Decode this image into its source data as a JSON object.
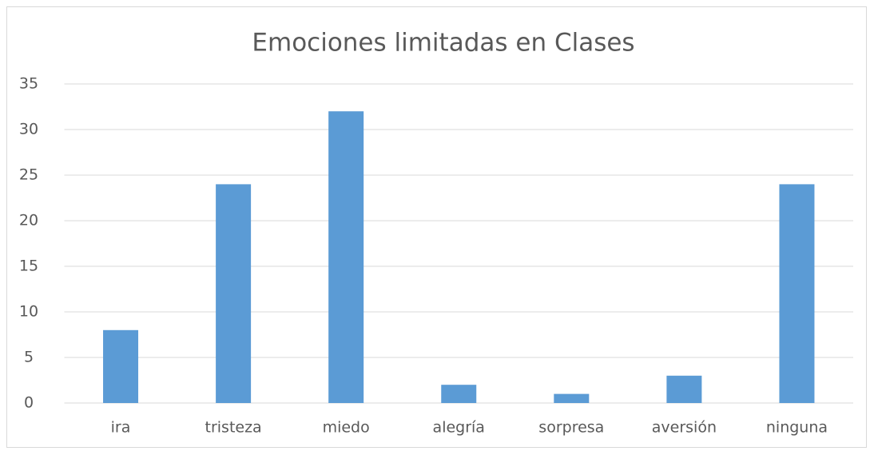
{
  "chart_data": {
    "type": "bar",
    "title": "Emociones limitadas en Clases",
    "categories": [
      "ira",
      "tristeza",
      "miedo",
      "alegría",
      "sorpresa",
      "aversión",
      "ninguna"
    ],
    "values": [
      8,
      24,
      32,
      2,
      1,
      3,
      24
    ],
    "color": "#5b9bd5",
    "ylim": [
      0,
      35
    ],
    "yticks": [
      0,
      5,
      10,
      15,
      20,
      25,
      30,
      35
    ],
    "grid": true
  }
}
